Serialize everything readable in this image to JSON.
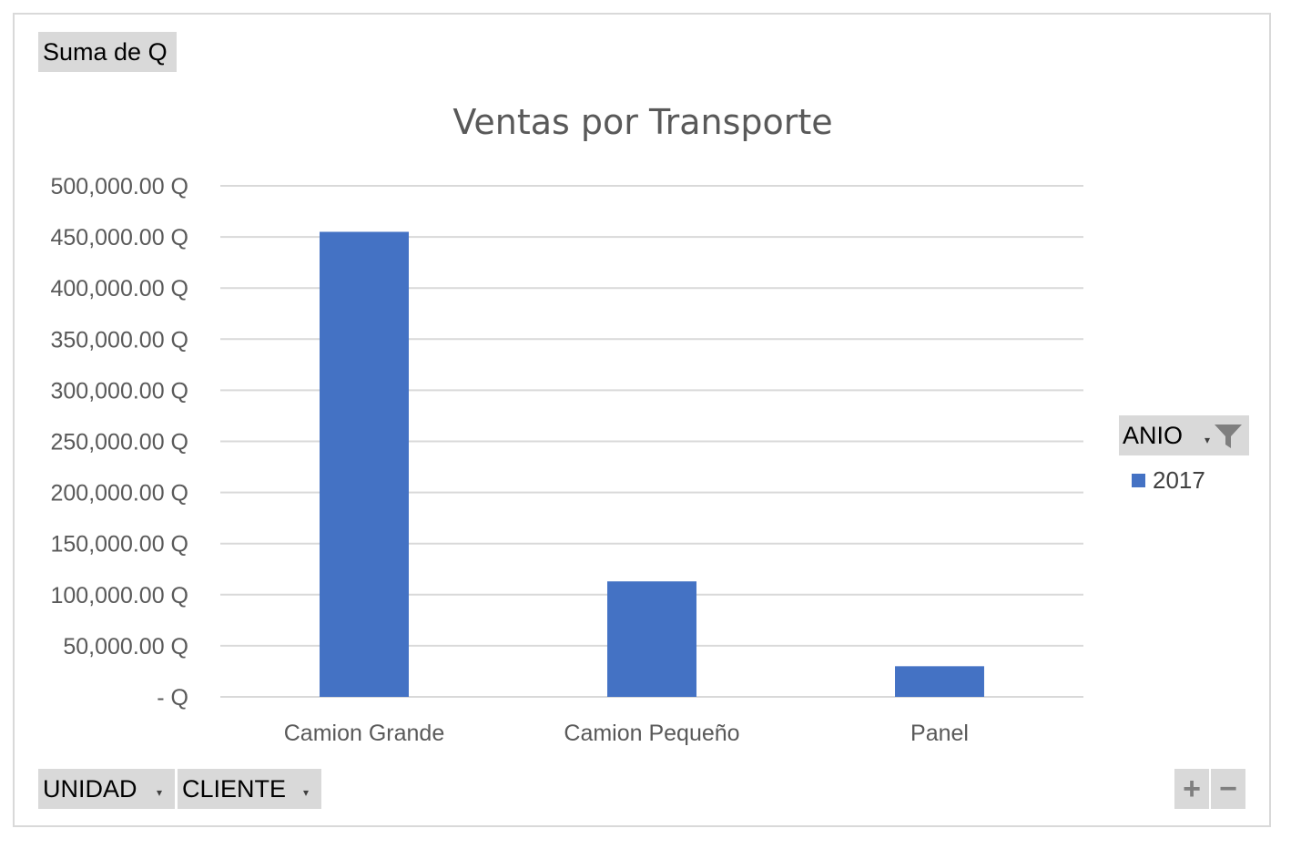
{
  "field_buttons": {
    "values": "Suma de Q",
    "axis_unidad": "UNIDAD",
    "axis_cliente": "CLIENTE",
    "legend": "ANIO"
  },
  "zoom": {
    "plus": "+",
    "minus": "−"
  },
  "colors": {
    "series": "#4472C4",
    "grid": "#d9d9d9",
    "button": "#d9d9d9",
    "text": "#595959"
  },
  "chart_data": {
    "type": "bar",
    "title": "Ventas por Transporte",
    "categories": [
      "Camion Grande",
      "Camion Pequeño",
      "Panel"
    ],
    "series": [
      {
        "name": "2017",
        "values": [
          455000,
          113000,
          30000
        ],
        "color": "#4472C4"
      }
    ],
    "ylim": [
      0,
      500000
    ],
    "yticks": [
      0,
      50000,
      100000,
      150000,
      200000,
      250000,
      300000,
      350000,
      400000,
      450000,
      500000
    ],
    "ytick_labels": [
      "-   Q",
      "50,000.00 Q",
      "100,000.00 Q",
      "150,000.00 Q",
      "200,000.00 Q",
      "250,000.00 Q",
      "300,000.00 Q",
      "350,000.00 Q",
      "400,000.00 Q",
      "450,000.00 Q",
      "500,000.00 Q"
    ],
    "grid": true,
    "legend_position": "right"
  }
}
